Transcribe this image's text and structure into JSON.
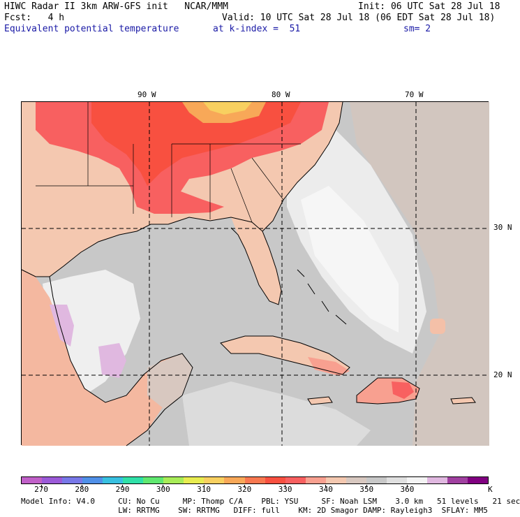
{
  "header": {
    "title": "HIWC Radar II 3km ARW-GFS init   NCAR/MMM",
    "init": "Init: 06 UTC Sat 28 Jul 18",
    "fcst": "Fcst:   4 h",
    "valid": "Valid: 10 UTC Sat 28 Jul 18 (06 EDT Sat 28 Jul 18)",
    "field": "Equivalent potential temperature",
    "kindex": "at k-index =  51",
    "smooth": "sm= 2"
  },
  "map_labels": {
    "lon": [
      "90 W",
      "80 W",
      "70 W"
    ],
    "lat": [
      "30 N",
      "20 N"
    ]
  },
  "colorbar": {
    "colors": [
      "#c060c8",
      "#9b5ad8",
      "#7878e8",
      "#5090e8",
      "#38c0e0",
      "#30e0a8",
      "#60e870",
      "#a8ec58",
      "#e8ec50",
      "#f8d060",
      "#f8a858",
      "#f87850",
      "#f85040",
      "#f86060",
      "#f8a090",
      "#f4c8b0",
      "#d8c8c0",
      "#c8c8c8",
      "#e0e0e0",
      "#f4f4f4",
      "#e0b8e0",
      "#a040a0",
      "#800080"
    ],
    "labels": [
      "270",
      "280",
      "290",
      "300",
      "310",
      "320",
      "330",
      "340",
      "350",
      "360"
    ],
    "unit": "K"
  },
  "footer": {
    "line1": "Model Info: V4.0     CU: No Cu     MP: Thomp C/A    PBL: YSU     SF: Noah LSM    3.0 km   51 levels   21 sec",
    "line2": "                     LW: RRTMG    SW: RRTMG   DIFF: full    KM: 2D Smagor DAMP: Rayleigh3  SFLAY: MM5"
  }
}
